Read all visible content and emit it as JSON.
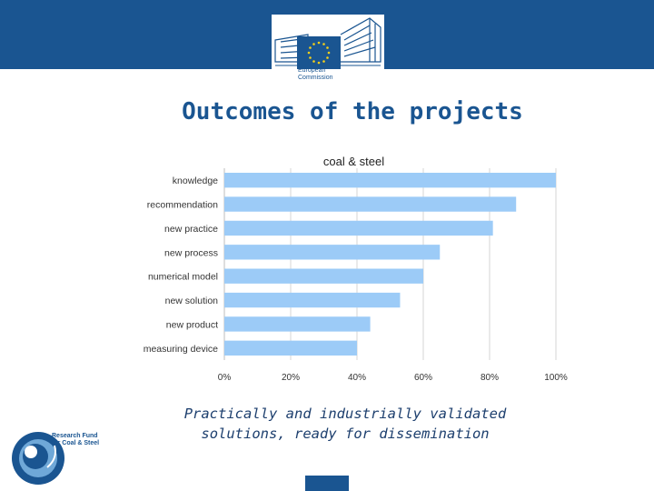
{
  "header": {
    "logo_line1": "European",
    "logo_line2": "Commission",
    "brand_color": "#1a5591",
    "logo_icon": "eu-commission-building-flag-icon"
  },
  "page": {
    "title": "Outcomes of the projects",
    "subtitle_line1": "Practically and industrially validated",
    "subtitle_line2": "solutions, ready for dissemination"
  },
  "footer": {
    "rfcs_line1": "Research Fund",
    "rfcs_line2": "for Coal & Steel",
    "rfcs_icon": "rfcs-circle-logo-icon"
  },
  "chart_data": {
    "type": "bar",
    "orientation": "horizontal",
    "title": "coal & steel",
    "categories": [
      "knowledge",
      "recommendation",
      "new practice",
      "new process",
      "numerical model",
      "new solution",
      "new product",
      "measuring device"
    ],
    "values": [
      100,
      88,
      81,
      65,
      60,
      53,
      44,
      40
    ],
    "unit": "%",
    "xlim": [
      0,
      100
    ],
    "ticks": [
      "0%",
      "20%",
      "40%",
      "60%",
      "80%",
      "100%"
    ],
    "grid": true,
    "legend": "none",
    "bar_color": "#9ccbf7"
  }
}
